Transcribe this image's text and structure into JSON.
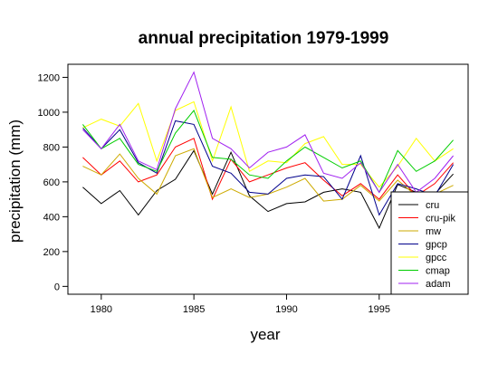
{
  "chart_data": {
    "type": "line",
    "title": "annual precipitation 1979-1999",
    "xlabel": "year",
    "ylabel": "precipitation (mm)",
    "x": [
      1979,
      1980,
      1981,
      1982,
      1983,
      1984,
      1985,
      1986,
      1987,
      1988,
      1989,
      1990,
      1991,
      1992,
      1993,
      1994,
      1995,
      1996,
      1997,
      1998,
      1999
    ],
    "xlim": [
      1978.2,
      1999.8
    ],
    "ylim": [
      -45,
      1275
    ],
    "xticks": [
      1980,
      1985,
      1990,
      1995
    ],
    "yticks": [
      0,
      200,
      400,
      600,
      800,
      1000,
      1200
    ],
    "grid": false,
    "legend_position": "bottom-right",
    "series": [
      {
        "name": "cru",
        "color": "#000000",
        "values": [
          570,
          475,
          550,
          410,
          550,
          615,
          780,
          530,
          770,
          520,
          430,
          475,
          485,
          540,
          560,
          540,
          335,
          585,
          540,
          530,
          645
        ]
      },
      {
        "name": "cru-pik",
        "color": "#ff0000",
        "values": [
          740,
          640,
          720,
          600,
          640,
          800,
          850,
          500,
          730,
          600,
          640,
          680,
          710,
          610,
          520,
          590,
          500,
          640,
          520,
          590,
          710
        ]
      },
      {
        "name": "mw",
        "color": "#cdaa00",
        "values": [
          690,
          640,
          760,
          620,
          530,
          750,
          790,
          510,
          560,
          510,
          530,
          570,
          620,
          490,
          500,
          580,
          490,
          610,
          520,
          530,
          580
        ]
      },
      {
        "name": "gpcp",
        "color": "#00008b",
        "values": [
          910,
          790,
          900,
          710,
          650,
          950,
          930,
          690,
          650,
          540,
          530,
          620,
          640,
          630,
          500,
          750,
          410,
          590,
          560,
          520,
          700
        ]
      },
      {
        "name": "gpcc",
        "color": "#ffff00",
        "values": [
          910,
          960,
          920,
          1050,
          720,
          1010,
          1060,
          720,
          1030,
          660,
          720,
          710,
          820,
          860,
          700,
          700,
          570,
          690,
          850,
          720,
          790
        ]
      },
      {
        "name": "cmap",
        "color": "#00cd00",
        "values": [
          930,
          790,
          850,
          700,
          660,
          880,
          1010,
          740,
          730,
          640,
          620,
          720,
          800,
          740,
          680,
          720,
          540,
          780,
          660,
          720,
          840
        ]
      },
      {
        "name": "adam",
        "color": "#a020f0",
        "values": [
          900,
          790,
          930,
          720,
          670,
          1020,
          1230,
          850,
          790,
          680,
          770,
          800,
          870,
          650,
          620,
          710,
          540,
          700,
          540,
          620,
          750
        ]
      }
    ]
  }
}
